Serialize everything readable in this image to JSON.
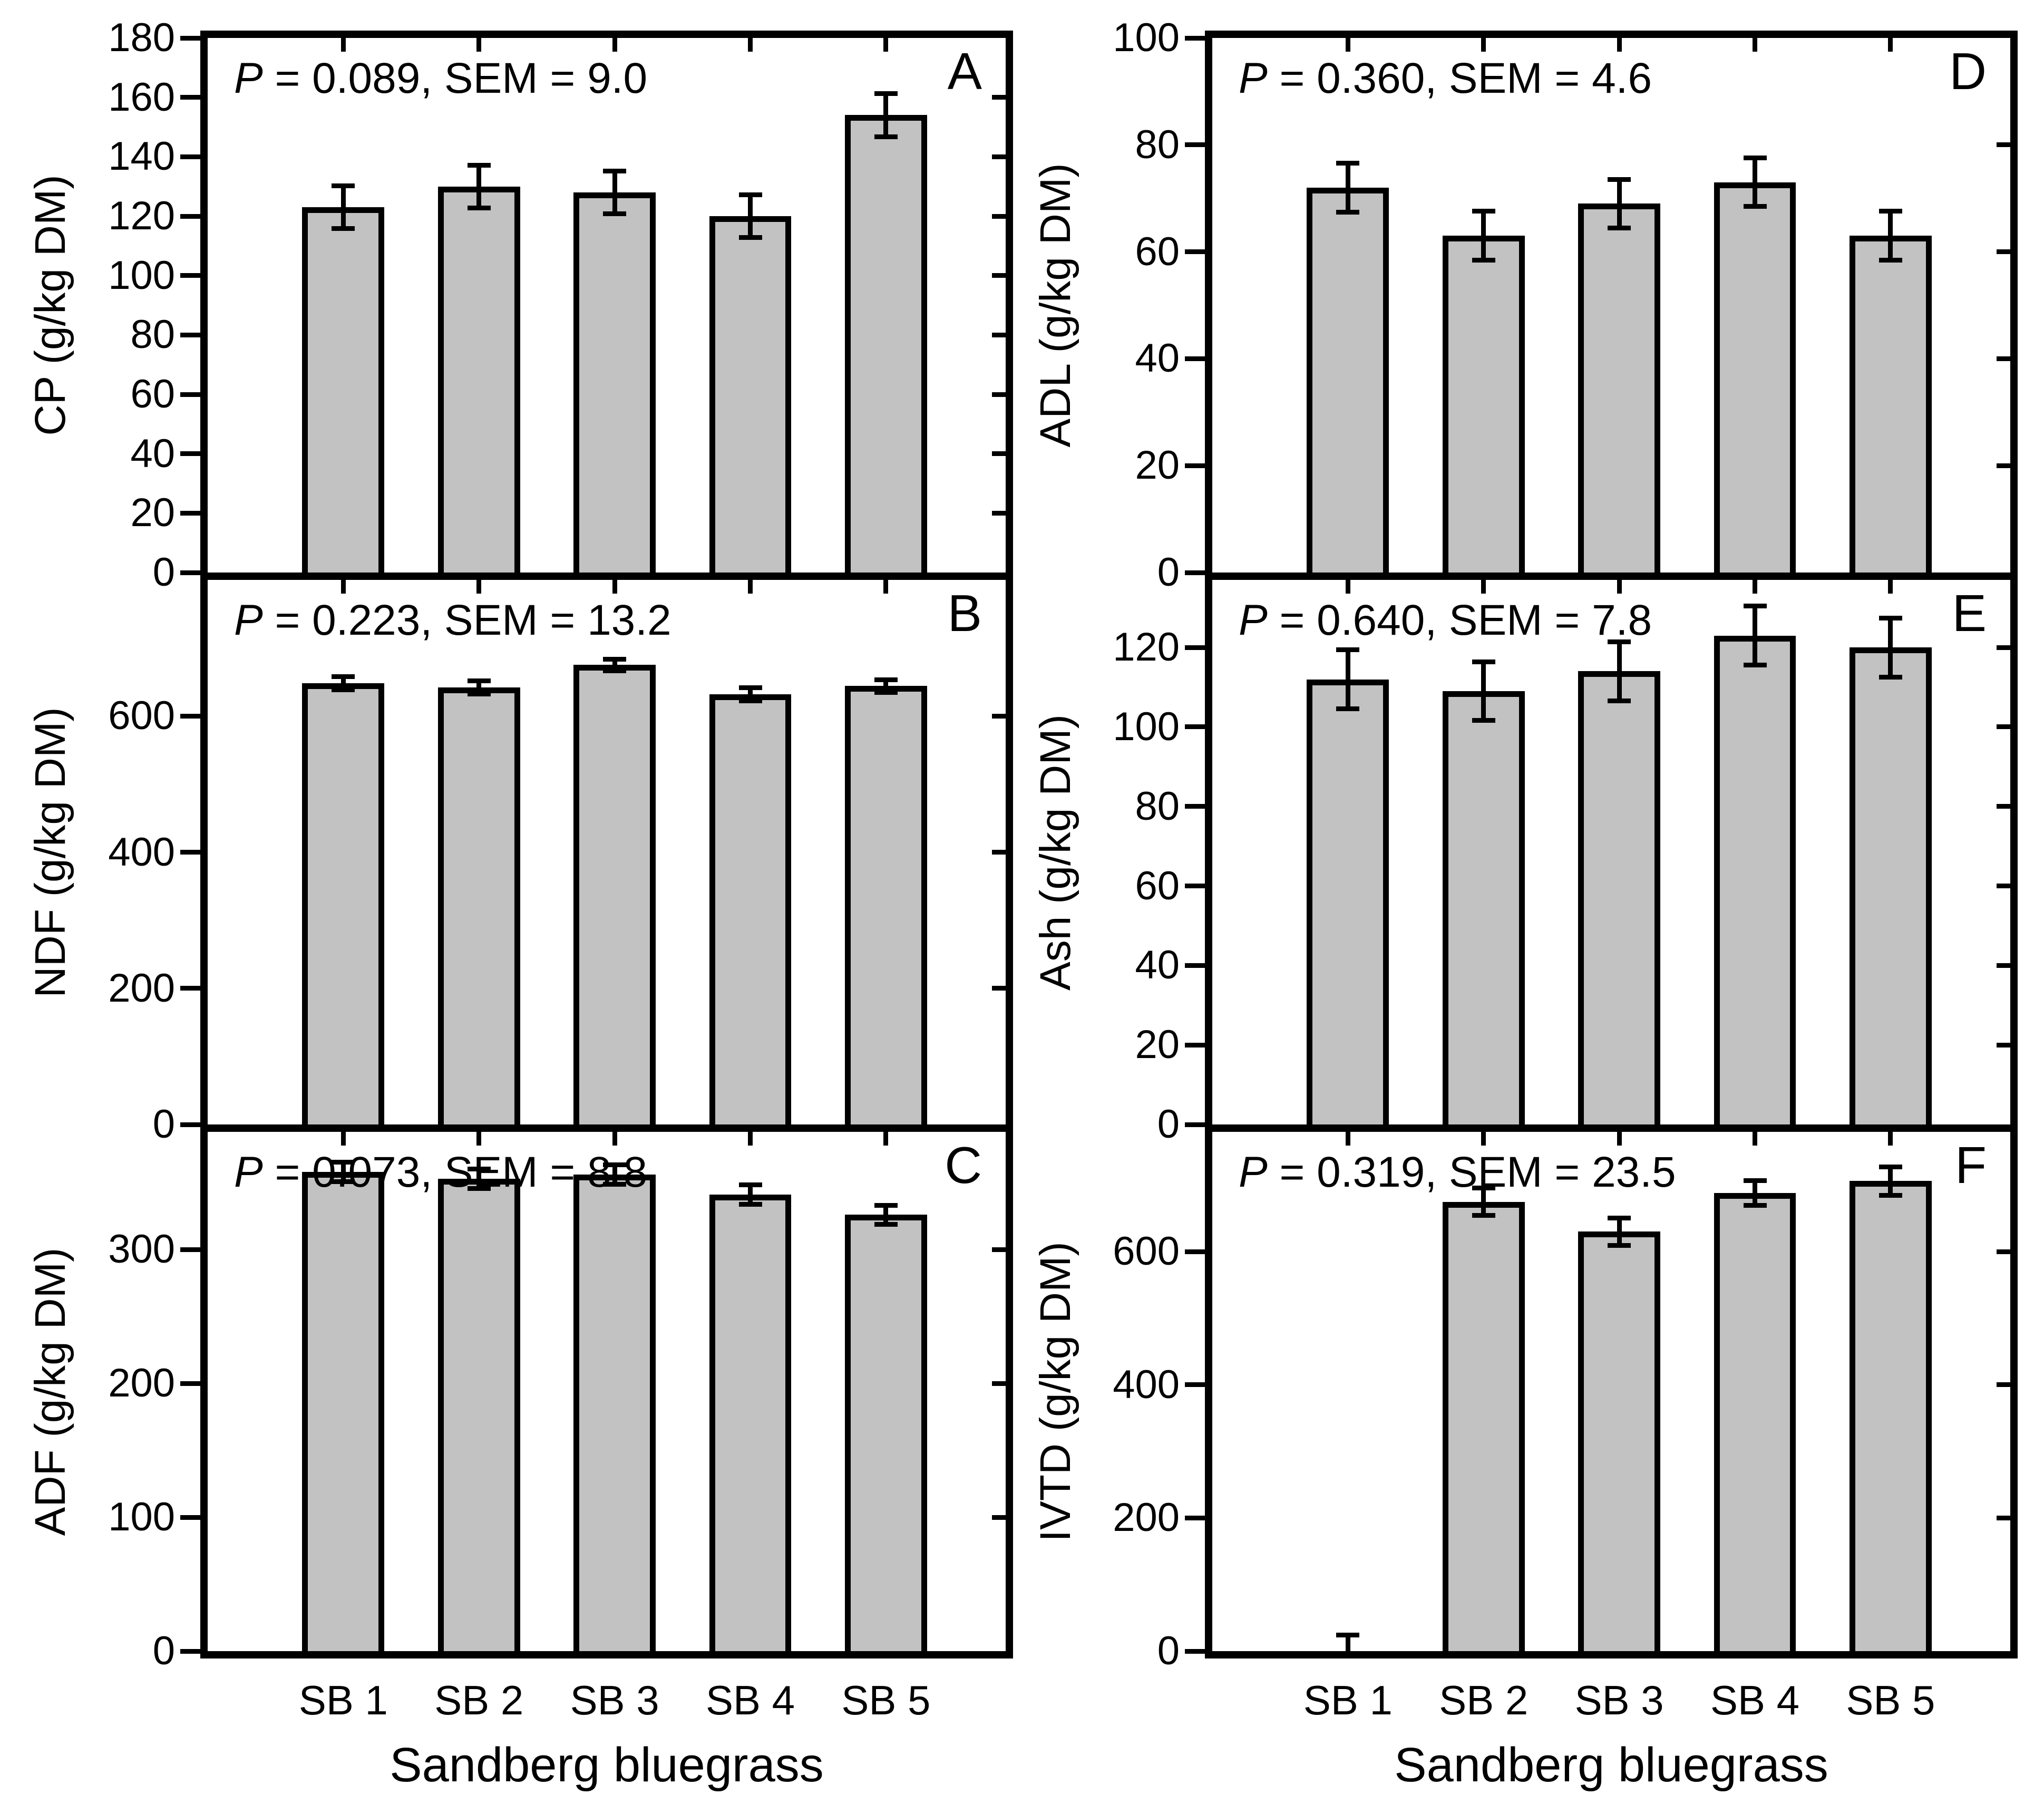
{
  "figure": {
    "x_axis_title": "Sandberg bluegrass",
    "bar_fill_color": "#c2c2c2",
    "axis_color": "#000000"
  },
  "chart_data": {
    "type": "bar",
    "categories": [
      "SB 1",
      "SB 2",
      "SB 3",
      "SB 4",
      "SB 5"
    ],
    "xlabel": "Sandberg bluegrass",
    "grid": false,
    "legend": "none",
    "panels": [
      {
        "letter": "A",
        "ylabel": "CP (g/kg DM)",
        "p_value": "0.089",
        "sem": "9.0",
        "ylim": [
          0,
          180
        ],
        "yticks": [
          0,
          20,
          40,
          60,
          80,
          100,
          120,
          140,
          160,
          180
        ],
        "values": [
          123,
          130,
          128,
          120,
          154
        ],
        "errors": [
          8,
          8,
          8,
          8,
          8
        ]
      },
      {
        "letter": "B",
        "ylabel": "NDF (g/kg DM)",
        "p_value": "0.223",
        "sem": "13.2",
        "ylim": [
          0,
          800
        ],
        "yticks": [
          0,
          200,
          400,
          600
        ],
        "values": [
          648,
          642,
          675,
          632,
          644
        ],
        "errors": [
          13,
          13,
          12,
          13,
          13
        ]
      },
      {
        "letter": "C",
        "ylabel": "ADF (g/kg DM)",
        "p_value": "0.073",
        "sem": "8.8",
        "ylim": [
          0,
          388
        ],
        "yticks": [
          0,
          100,
          200,
          300
        ],
        "values": [
          358,
          353,
          356,
          341,
          326
        ],
        "errors": [
          9,
          9,
          9,
          9,
          9
        ]
      },
      {
        "letter": "D",
        "ylabel": "ADL (g/kg DM)",
        "p_value": "0.360",
        "sem": "4.6",
        "ylim": [
          0,
          100
        ],
        "yticks": [
          0,
          20,
          40,
          60,
          80,
          100
        ],
        "values": [
          72,
          63,
          69,
          73,
          63
        ],
        "errors": [
          5,
          5,
          5,
          5,
          5
        ]
      },
      {
        "letter": "E",
        "ylabel": "Ash (g/kg DM)",
        "p_value": "0.640",
        "sem": "7.8",
        "ylim": [
          0,
          137
        ],
        "yticks": [
          0,
          20,
          40,
          60,
          80,
          100,
          120
        ],
        "values": [
          112,
          109,
          114,
          123,
          120
        ],
        "errors": [
          8,
          8,
          8,
          8,
          8
        ]
      },
      {
        "letter": "F",
        "ylabel": "IVTD (g/kg DM)",
        "p_value": "0.319",
        "sem": "23.5",
        "ylim": [
          0,
          780
        ],
        "yticks": [
          0,
          200,
          400,
          600
        ],
        "values": [
          0,
          675,
          630,
          688,
          706
        ],
        "errors": [
          28,
          24,
          24,
          22,
          25
        ]
      }
    ]
  }
}
